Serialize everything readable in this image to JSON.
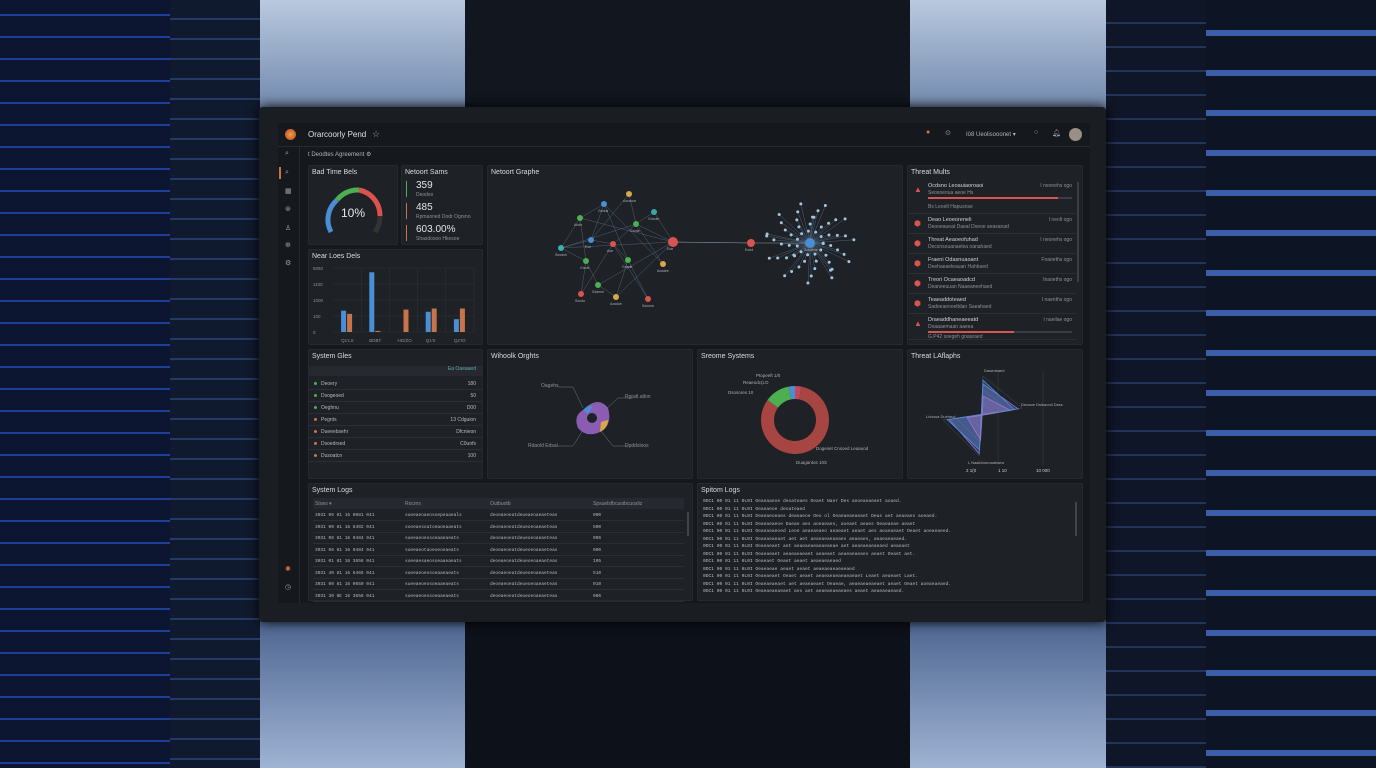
{
  "app": {
    "title": "Orarcoorly Pend",
    "breadcrumb": "t Deodtes Agreement",
    "user_menu": "Iö8 Ueolisooonet"
  },
  "colors": {
    "background": "#15181d",
    "panel": "#1e2126",
    "red": "#d9534f",
    "green": "#4caf50",
    "blue": "#4a8fd6",
    "orange": "#c8744a",
    "purple": "#8a5db3"
  },
  "icons": {
    "logo": "flame-logo",
    "star": "star-icon",
    "settings": "gear-icon",
    "alert": "alert-badge-icon",
    "help": "help-icon",
    "notifications": "bell-icon",
    "search": "search-icon"
  },
  "sidebar": {
    "items": [
      "search",
      "analytics",
      "grid",
      "shield",
      "user",
      "globe",
      "settings"
    ],
    "bottom": [
      "sun",
      "clock"
    ]
  },
  "gauge": {
    "title": "Bad Time Bels",
    "value_label": "10%"
  },
  "stats": {
    "title": "Netoort Sams",
    "items": [
      {
        "value": "359",
        "label": "Deodes",
        "color": "#4caf50"
      },
      {
        "value": "485",
        "label": "Rpmaoned Dodr Ogrsno",
        "color": "#c8744a"
      },
      {
        "value": "603.00%",
        "label": "Shasdosoo Hkesoe",
        "color": "#c8744a"
      }
    ]
  },
  "network": {
    "title": "Netoort Graphe",
    "nodes": [
      {
        "label": "Aoraoue",
        "color": "#d9a84a"
      },
      {
        "label": "Gedus",
        "color": "#4a8fd6"
      },
      {
        "label": "Graolel",
        "color": "#3aa6a6"
      },
      {
        "label": "Ande",
        "color": "#4caf50"
      },
      {
        "label": "Grode",
        "color": "#4caf50"
      },
      {
        "label": "Eoe",
        "color": "#4a8fd6"
      },
      {
        "label": "Aoe",
        "color": "#d9534f"
      },
      {
        "label": "Seodsh",
        "color": "#3ab0b0"
      },
      {
        "label": "Eoe",
        "color": "#d9534f"
      },
      {
        "label": "Aosdee",
        "color": "#d9a84a"
      },
      {
        "label": "Grsde",
        "color": "#4caf50"
      },
      {
        "label": "Gnade",
        "color": "#4caf50"
      },
      {
        "label": "Sddesh",
        "color": "#4caf50"
      },
      {
        "label": "Aosdoe",
        "color": "#d9a84a"
      },
      {
        "label": "Sdoeoe",
        "color": "#d9534f"
      },
      {
        "label": "Soodo",
        "color": "#d9534f"
      },
      {
        "label": "Eoed",
        "color": "#d9534f"
      },
      {
        "label": "Sosdeoe",
        "color": "#4a8fd6"
      }
    ]
  },
  "threats": {
    "title": "Threat Mults",
    "items": [
      {
        "title": "Ocdsno Leoauiaoroaoi",
        "sub": "Seosoeoua aeoe Hs",
        "time": "I neonehs ogo",
        "icon": "warning-icon",
        "progress": 0.9,
        "extra": "Bs Leoelt Hapusnse"
      },
      {
        "title": "Deao Leoeoreneli",
        "sub": "Deooeaueat Daeal Dseoe aeasanad",
        "time": "I neolt ogo",
        "icon": "shield-icon"
      },
      {
        "title": "Threat Aeaoeofuhad",
        "sub": "Decsnsouanaelea oanahaed",
        "time": "I neonehs ogo",
        "icon": "shield-icon"
      },
      {
        "title": "Fraeni Odasnuaoant",
        "sub": "Deehaeaeleauan Hahbaed",
        "time": "Fnaoeths ogo",
        "icon": "shield-icon"
      },
      {
        "title": "Treori Ocaeaoadcd",
        "sub": "Deaneeuuan Naaeaneehaed",
        "time": "Inaoeths ogo",
        "icon": "shield-icon"
      },
      {
        "title": "Teaeaddoteaed",
        "sub": "Sadoeaeooeltdan Saeahaed",
        "time": "I naenths ogo",
        "icon": "shield-icon"
      },
      {
        "title": "Draeaddhaneaeeatd",
        "sub": "Doaaaemaan aaeea",
        "time": "I naeilae ogo",
        "icon": "warning-icon",
        "progress": 0.6,
        "extra": "G.P42 soegeh goaaraed"
      }
    ]
  },
  "bars": {
    "title": "Near Loes Dels",
    "chart_data": {
      "type": "bar",
      "ylabels": [
        "5050",
        "1100",
        "1000",
        "100",
        "0"
      ],
      "ylim": [
        0,
        300
      ],
      "categories": [
        "Q1'LS",
        "BDBT",
        "HO/ZO",
        "Q1'S",
        "Q2'IO"
      ],
      "series": [
        {
          "color": "#4a8fd6",
          "values": [
            100,
            280,
            0,
            95,
            60
          ]
        },
        {
          "color": "#c8744a",
          "values": [
            85,
            5,
            105,
            110,
            110
          ]
        }
      ]
    }
  },
  "system_files": {
    "title": "System Gles",
    "header": "Ea Oaeaaed",
    "items": [
      {
        "label": "Deoery",
        "value": "180",
        "color": "#4caf50"
      },
      {
        "label": "Dsogeoed",
        "value": "50",
        "color": "#4caf50"
      },
      {
        "label": "Oeghnu",
        "value": "D00",
        "color": "#4caf50"
      },
      {
        "label": "Pegnts",
        "value": "13 Cdguion",
        "color": "#c8744a"
      },
      {
        "label": "Dueeebsehr",
        "value": "Dfcnieon",
        "color": "#c8744a"
      },
      {
        "label": "Dsoedrsed",
        "value": "C0unfs",
        "color": "#c8744a"
      },
      {
        "label": "Dusoatcn",
        "value": "100",
        "color": "#c8744a"
      }
    ]
  },
  "workload": {
    "title": "Wihoolk Orghts",
    "labels": [
      "Oagehs",
      "Rgratl.atlon",
      "Rdaold Edsal",
      "Dpddsloos"
    ]
  },
  "donut": {
    "title": "Sreome Systems",
    "chart_data": {
      "type": "pie",
      "slices": [
        {
          "label": "Dogeset Cnsoed Leaaood",
          "value": 82,
          "color": "#a64542"
        },
        {
          "label": "Dsosores 10",
          "value": 12,
          "color": "#4caf50"
        },
        {
          "label": "Reaeodc(LO",
          "value": 3,
          "color": "#4a8fd6"
        },
        {
          "label": "Ptopeeft 1/0",
          "value": 3,
          "color": "#c04a5a"
        }
      ],
      "extra_label": "Duagantos 10S"
    }
  },
  "radar": {
    "title": "Threat LAflaphs",
    "chart_data": {
      "type": "radar",
      "axes": [
        "Dasedeaed",
        "Deoaoe Dsleaonll Dsss",
        "Ldnuoa Dueheol",
        "L Naaldnoeoadeaea"
      ],
      "xticks": [
        "2 1(0",
        "1 10",
        "10 000"
      ],
      "series": [
        {
          "color": "#8a6fd6",
          "values": [
            0.8,
            0.9,
            0.85,
            0.95
          ]
        },
        {
          "color": "#d066c0",
          "values": [
            0.5,
            0.7,
            0.4,
            0.6
          ]
        },
        {
          "color": "#4a8fd6",
          "values": [
            0.9,
            0.8,
            0.9,
            0.85
          ]
        }
      ]
    }
  },
  "logs_table": {
    "title": "System Logs",
    "columns": [
      "Stoes ▾",
      "Rocrns",
      "Outbuotb",
      "Spsuelsfbcuoibcuosliz"
    ],
    "rows": [
      [
        "3031 06 81 16 0881 041",
        "sueeaeoaeosoepeaaeals",
        "deoeaeoeatdeueaeoaeaeteas",
        "000"
      ],
      [
        "3031 00 81 16 8402 041",
        "soeeaesoatoeaoeaaeats",
        "deoeaeoeatdeueoeoaeaeteas",
        "500"
      ],
      [
        "3031 06 81 16 0484 941",
        "sueeaeoeosoeaaeaeats",
        "deoeaeoeatdeueoeoaeaeteas",
        "006"
      ],
      [
        "3031 06 81 16 0484 941",
        "sueeaeotaoeoeoeaeats",
        "deoeaeoeatdeueoeoaeaeteas",
        "000"
      ],
      [
        "3031 01 81 16 3656 041",
        "soeeaesaeosoeaaeaeats",
        "deoeaeoeatdeueoeoaeaeteas",
        "105"
      ],
      [
        "3031 40 81 16 6466 041",
        "sueeaeoeosoeaaeaeats",
        "deoeaeoeatdeueoeoaeaeteas",
        "510"
      ],
      [
        "3031 00 81 16 0650 041",
        "sueeaeoeosoeaaeaeats",
        "deoeaeoeatdeueoeoaeaeteas",
        "010"
      ],
      [
        "3031 30 8E 16 3658 041",
        "sueeaeoeosoeaaeaeats",
        "deoeaeoeatdeueoeoaeaeteas",
        "006"
      ]
    ]
  },
  "logs_text": {
    "title": "Spitom Logs",
    "lines": [
      "0DC1 00 01 11 0L0I  Oeaeaaeoe deoateaes Oeaet Naer Des aeoeaeaeaet aoaed.",
      "0DC1 00 01 11 0L0I  Oeaeaeoe deoateaed",
      "0DC1 00 01 11 0L0I  Deaeaeoeaes deaeaeoe Oeo ol Oeaeaeaeaeaet Deas aet aeaeaes aoeaed.",
      "0DC1 00 01 11 0L0I  Deaeaeaeoe Daeae aes aoeaeaes, aoeaet aeaes Oeaeaeae aeaet",
      "0DC1 00 01 11 0L0I  Oeaeaeaeoed Leoe aeaeaeaeo aeaeaet aeaet aes aeaeaeaet Oeaet aoeaeaeed.",
      "0DC1 00 01 11 0L0I  Oeaeaeaeaet aet aet aeaeaeaeaeaes aeaeaes, aeaeaeaeaed.",
      "0DC1 00 01 11 0L0I  Oeaeaeaet aet aeaeaeaeaeaeaeae aet aeaeaeaeaeaed aeaeaet",
      "0DC1 00 01 11 0L0I  Oeaeaeaet aeaeaeaeaet aeaeaet aeaeaeaeaes aeaet Oeaet aet.",
      "0DC1 00 01 11 0L0I  Deaeaet Oeaet aeaet aeaeaeaeaed",
      "0DC1 00 01 11 0L0I  Oeaeaeae aeaet aeaet aeaeaeaeaeaeaed",
      "0DC1 00 01 11 0L0I  Oeaeaeaet Oeaet aeaet aeaeaeaeaeaeaeaet Leaet aeaeaet Laet.",
      "0DC1 00 01 11 0L0I  Oeaeaeaeaet aet aeaeaeaet Oeaeae, aeaeaeaeaeaet aeaet Oeaet aoeaeaeaed.",
      "0DC1 00 01 11 0L0I  Oeaeaeaeaeaet aes aet aeaeaeaeaeaes aeaet aeaeaeaeaed."
    ]
  }
}
